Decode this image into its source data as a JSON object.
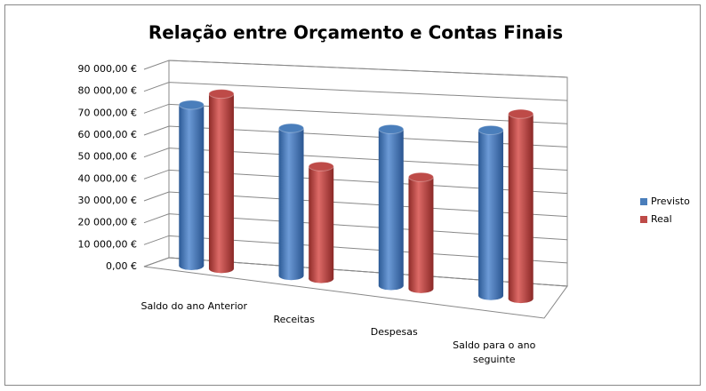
{
  "chart_data": {
    "type": "bar3d",
    "title": "Relação entre Orçamento e Contas Finais",
    "categories": [
      "Saldo do ano Anterior",
      "Receitas",
      "Despesas",
      "Saldo para o ano seguinte"
    ],
    "series": [
      {
        "name": "Previsto",
        "color": "#4a7ebb",
        "values": [
          73000,
          66000,
          69000,
          72000
        ]
      },
      {
        "name": "Real",
        "color": "#be4b48",
        "values": [
          79000,
          50000,
          49000,
          80000
        ]
      }
    ],
    "ylim": [
      0,
      90000
    ],
    "yticks": [
      {
        "value": 0,
        "label": "0,00 €"
      },
      {
        "value": 10000,
        "label": "10 000,00 €"
      },
      {
        "value": 20000,
        "label": "20 000,00 €"
      },
      {
        "value": 30000,
        "label": "30 000,00 €"
      },
      {
        "value": 40000,
        "label": "40 000,00 €"
      },
      {
        "value": 50000,
        "label": "50 000,00 €"
      },
      {
        "value": 60000,
        "label": "60 000,00 €"
      },
      {
        "value": 70000,
        "label": "70 000,00 €"
      },
      {
        "value": 80000,
        "label": "80 000,00 €"
      },
      {
        "value": 90000,
        "label": "90 000,00 €"
      }
    ],
    "grid": true,
    "legend": "right"
  }
}
